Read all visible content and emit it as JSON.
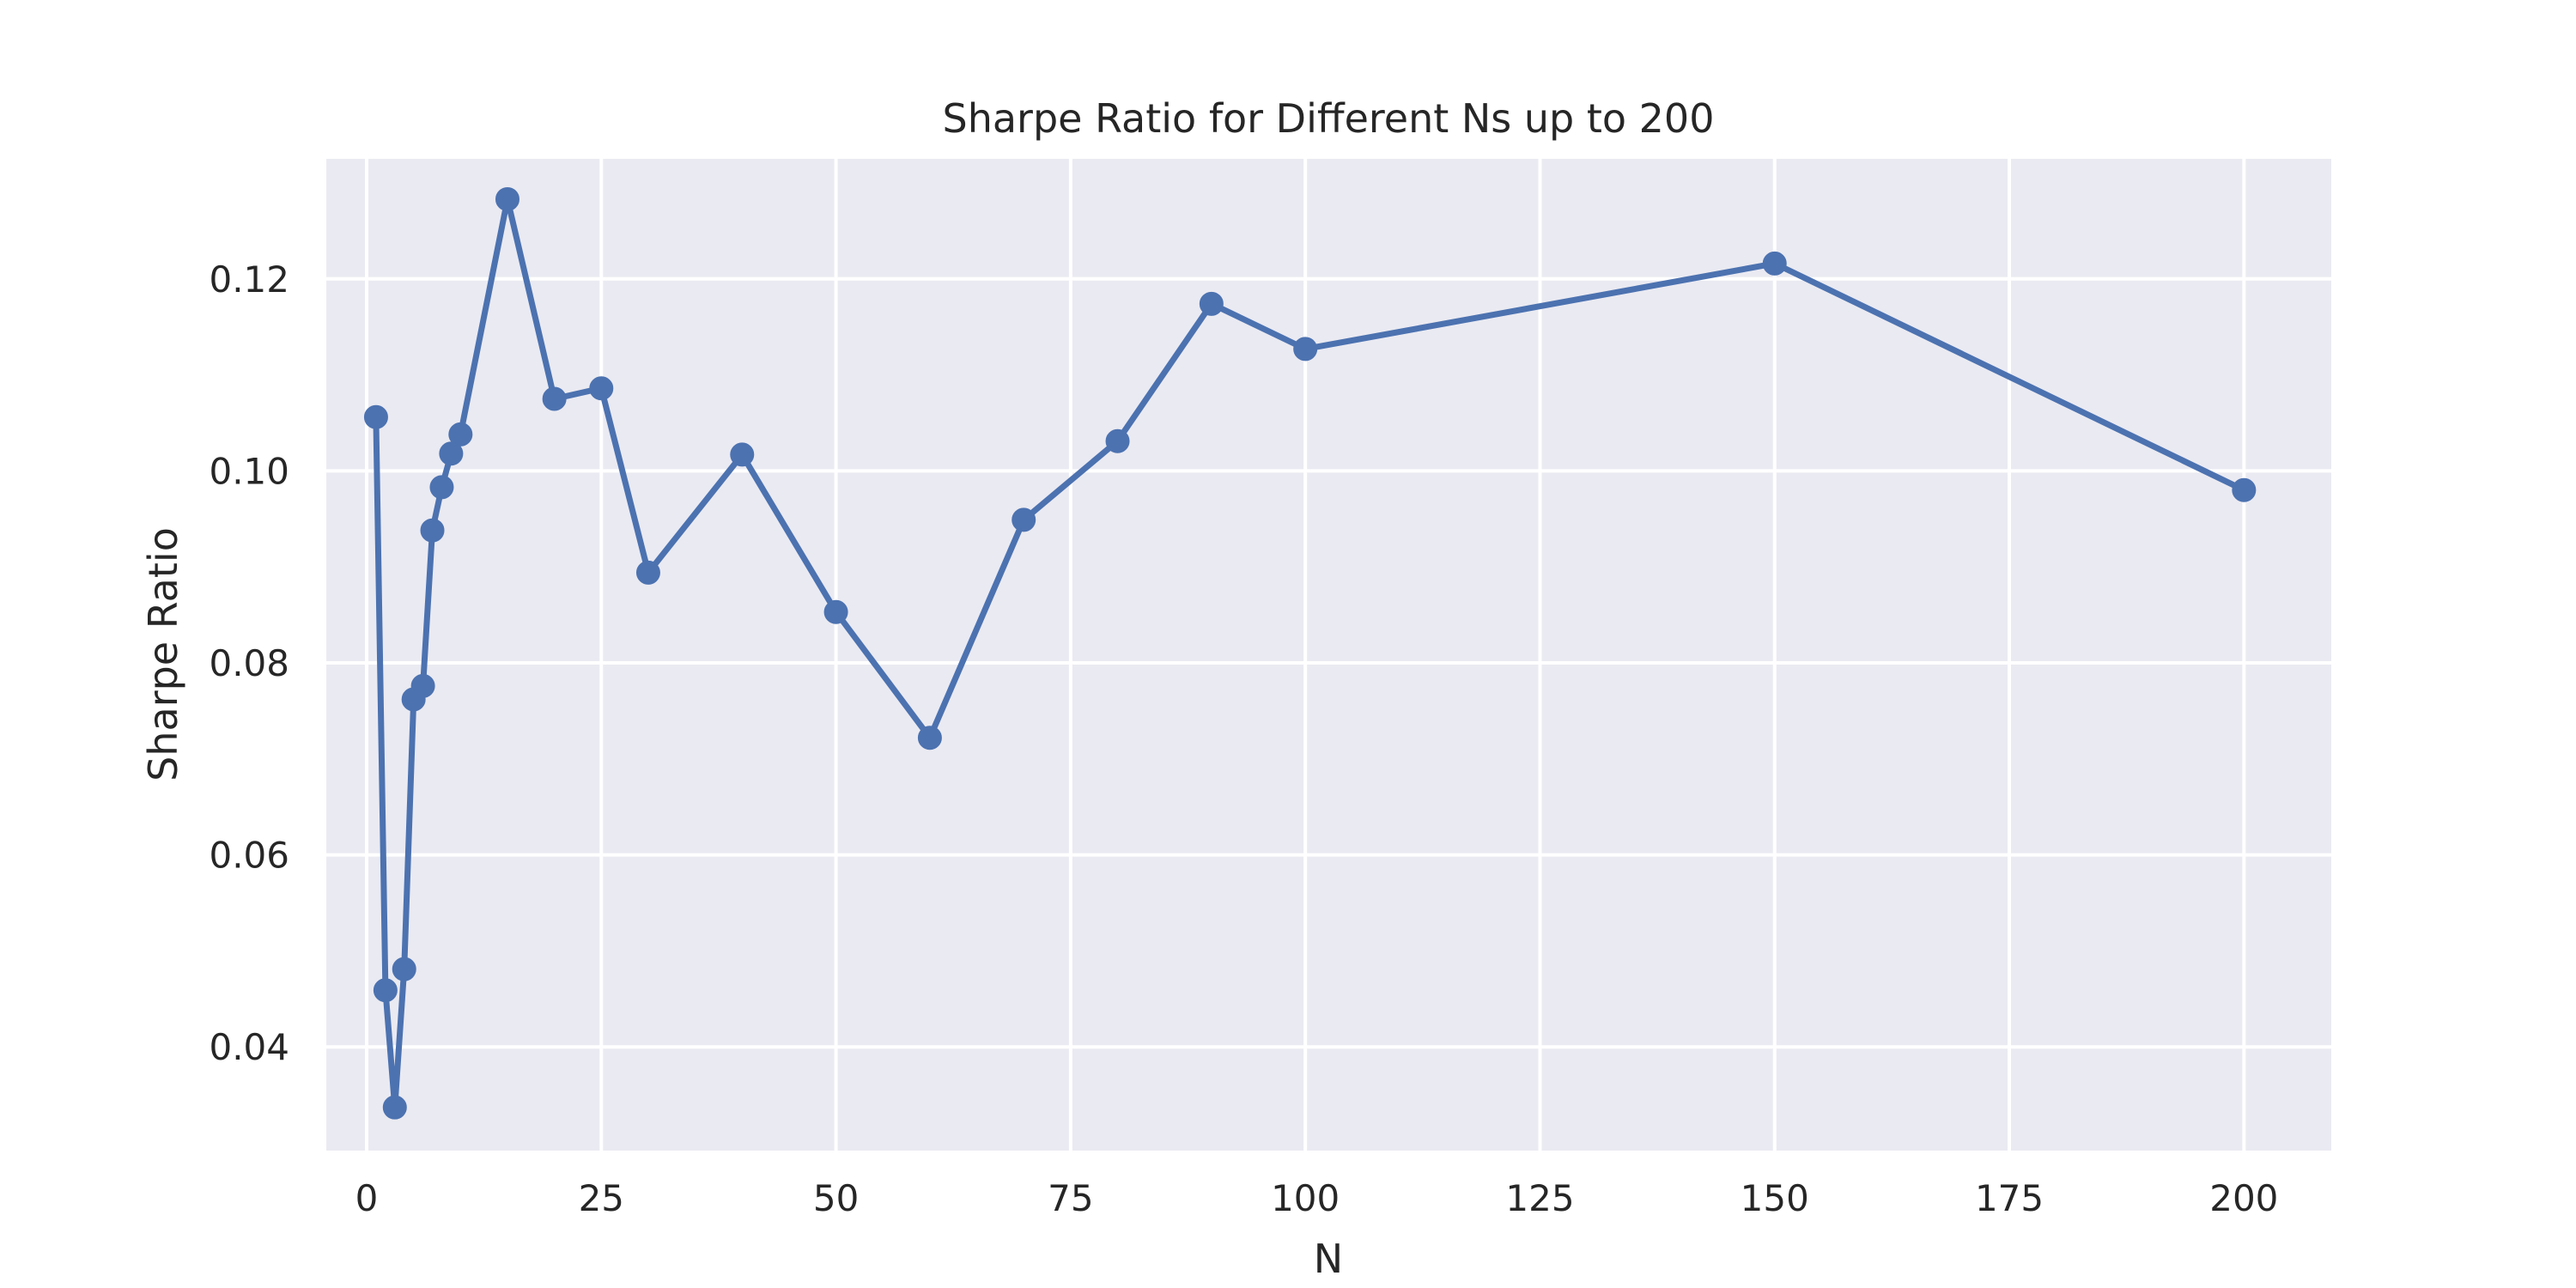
{
  "chart_data": {
    "type": "line",
    "title": "Sharpe Ratio for Different Ns up to 200",
    "xlabel": "N",
    "ylabel": "Sharpe Ratio",
    "xlim": [
      -4.3,
      209.3
    ],
    "ylim": [
      0.0292,
      0.1325
    ],
    "xticks": [
      0,
      25,
      50,
      75,
      100,
      125,
      150,
      175,
      200
    ],
    "yticks": [
      0.04,
      0.06,
      0.08,
      0.1,
      0.12
    ],
    "ytick_labels": [
      "0.04",
      "0.06",
      "0.08",
      "0.10",
      "0.12"
    ],
    "grid": true,
    "legend": false,
    "colors": {
      "series": "#4c72b0",
      "plot_background": "#eaeaf2",
      "grid": "#ffffff",
      "text": "#262626"
    },
    "series": [
      {
        "x": [
          1,
          2,
          3,
          4,
          5,
          6,
          7,
          8,
          9,
          10,
          15,
          20,
          25,
          30,
          40,
          50,
          60,
          70,
          80,
          90,
          100,
          150,
          200
        ],
        "y": [
          0.1056,
          0.0459,
          0.0337,
          0.0481,
          0.0762,
          0.0776,
          0.0938,
          0.0983,
          0.1018,
          0.1038,
          0.1283,
          0.1075,
          0.1086,
          0.0894,
          0.1017,
          0.0853,
          0.0722,
          0.0949,
          0.1031,
          0.1174,
          0.1127,
          0.1216,
          0.098
        ]
      }
    ]
  }
}
